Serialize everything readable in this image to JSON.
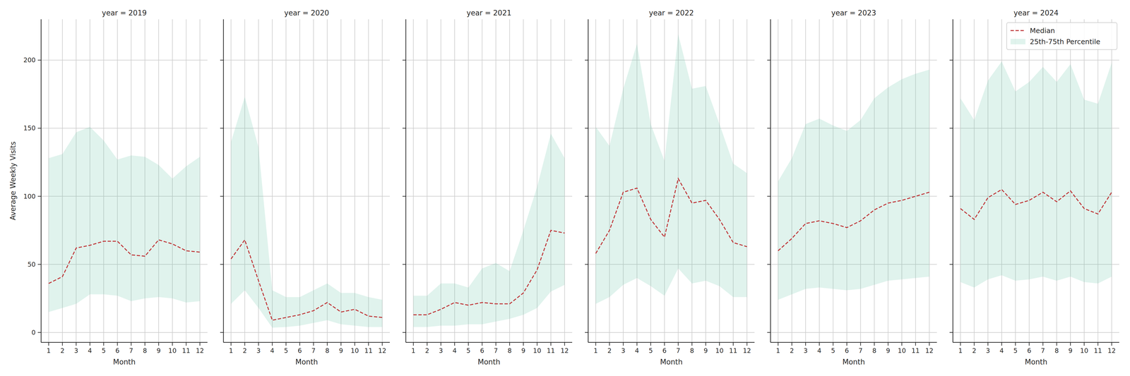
{
  "chart_data": [
    {
      "type": "line",
      "title": "year = 2019",
      "x_label": "Month",
      "y_label": "Average Weekly Visits",
      "x": [
        1,
        2,
        3,
        4,
        5,
        6,
        7,
        8,
        9,
        10,
        11,
        12
      ],
      "xlim": [
        0.45,
        12.55
      ],
      "xticks": [
        1,
        2,
        3,
        4,
        5,
        6,
        7,
        8,
        9,
        10,
        11,
        12
      ],
      "ylim": [
        -7.3,
        230
      ],
      "yticks": [
        0,
        50,
        100,
        150,
        200
      ],
      "grid": true,
      "series": [
        {
          "type": "line",
          "line_style": "dashed",
          "color": "#c0393b",
          "values": [
            36,
            41,
            62,
            64,
            67,
            67,
            57,
            56,
            68,
            65,
            60,
            59
          ]
        },
        {
          "type": "band",
          "color": "#66c2a5",
          "lower": [
            15,
            18,
            21,
            28,
            28,
            27,
            23,
            25,
            26,
            25,
            22,
            23
          ],
          "upper": [
            128,
            131,
            147,
            151,
            141,
            127,
            130,
            129,
            123,
            113,
            122,
            129
          ]
        }
      ]
    },
    {
      "type": "line",
      "title": "year = 2020",
      "x_label": "Month",
      "tick_labels": "x",
      "x": [
        1,
        2,
        3,
        4,
        5,
        6,
        7,
        8,
        9,
        10,
        11,
        12
      ],
      "xlim": [
        0.45,
        12.55
      ],
      "xticks": [
        1,
        2,
        3,
        4,
        5,
        6,
        7,
        8,
        9,
        10,
        11,
        12
      ],
      "ylim": [
        -7.3,
        230
      ],
      "yticks": [
        0,
        50,
        100,
        150,
        200
      ],
      "grid": true,
      "series": [
        {
          "type": "line",
          "line_style": "dashed",
          "color": "#c0393b",
          "values": [
            54,
            68,
            38,
            9,
            11,
            13,
            16,
            22,
            15,
            17,
            12,
            11
          ]
        },
        {
          "type": "band",
          "color": "#66c2a5",
          "lower": [
            21,
            31,
            18,
            3.5,
            4,
            5,
            7,
            9,
            6,
            5,
            4,
            4
          ],
          "upper": [
            140,
            173,
            136,
            31,
            26,
            26,
            31,
            36,
            29,
            29,
            26,
            24
          ]
        }
      ]
    },
    {
      "type": "line",
      "title": "year = 2021",
      "x_label": "Month",
      "tick_labels": "x",
      "x": [
        1,
        2,
        3,
        4,
        5,
        6,
        7,
        8,
        9,
        10,
        11,
        12
      ],
      "xlim": [
        0.45,
        12.55
      ],
      "xticks": [
        1,
        2,
        3,
        4,
        5,
        6,
        7,
        8,
        9,
        10,
        11,
        12
      ],
      "ylim": [
        -7.3,
        230
      ],
      "yticks": [
        0,
        50,
        100,
        150,
        200
      ],
      "grid": true,
      "series": [
        {
          "type": "line",
          "line_style": "dashed",
          "color": "#c0393b",
          "values": [
            13,
            13,
            17,
            22,
            20,
            22,
            21,
            21,
            29,
            46,
            75,
            73
          ]
        },
        {
          "type": "band",
          "color": "#66c2a5",
          "lower": [
            4,
            4,
            5,
            5,
            6,
            6,
            8,
            10,
            13,
            18,
            30,
            35
          ],
          "upper": [
            27,
            27,
            36,
            36,
            33,
            47,
            51,
            45,
            75,
            107,
            146,
            128
          ]
        }
      ]
    },
    {
      "type": "line",
      "title": "year = 2022",
      "x_label": "Month",
      "tick_labels": "x",
      "x": [
        1,
        2,
        3,
        4,
        5,
        6,
        7,
        8,
        9,
        10,
        11,
        12
      ],
      "xlim": [
        0.45,
        12.55
      ],
      "xticks": [
        1,
        2,
        3,
        4,
        5,
        6,
        7,
        8,
        9,
        10,
        11,
        12
      ],
      "ylim": [
        -7.3,
        230
      ],
      "yticks": [
        0,
        50,
        100,
        150,
        200
      ],
      "grid": true,
      "series": [
        {
          "type": "line",
          "line_style": "dashed",
          "color": "#c0393b",
          "values": [
            58,
            75,
            103,
            106,
            83,
            70,
            113,
            95,
            97,
            83,
            66,
            63
          ]
        },
        {
          "type": "band",
          "color": "#66c2a5",
          "lower": [
            21,
            26,
            35,
            40,
            34,
            27,
            47,
            36,
            38,
            34,
            26,
            26
          ],
          "upper": [
            151,
            137,
            179,
            212,
            153,
            126,
            219,
            179,
            181,
            153,
            124,
            117
          ]
        }
      ]
    },
    {
      "type": "line",
      "title": "year = 2023",
      "x_label": "Month",
      "tick_labels": "x",
      "x": [
        1,
        2,
        3,
        4,
        5,
        6,
        7,
        8,
        9,
        10,
        11,
        12
      ],
      "xlim": [
        0.45,
        12.55
      ],
      "xticks": [
        1,
        2,
        3,
        4,
        5,
        6,
        7,
        8,
        9,
        10,
        11,
        12
      ],
      "ylim": [
        -7.3,
        230
      ],
      "yticks": [
        0,
        50,
        100,
        150,
        200
      ],
      "grid": true,
      "series": [
        {
          "type": "line",
          "line_style": "dashed",
          "color": "#c0393b",
          "values": [
            60,
            69,
            80,
            82,
            80,
            77,
            82,
            90,
            95,
            97,
            100,
            103
          ]
        },
        {
          "type": "band",
          "color": "#66c2a5",
          "lower": [
            24,
            28,
            32,
            33,
            32,
            31,
            32,
            35,
            38,
            39,
            40,
            41
          ],
          "upper": [
            111,
            128,
            153,
            157,
            152,
            148,
            156,
            172,
            180,
            186,
            190,
            193
          ]
        }
      ]
    },
    {
      "type": "line",
      "title": "year = 2024",
      "x_label": "Month",
      "tick_labels": "x",
      "legend": "upper right",
      "x": [
        1,
        2,
        3,
        4,
        5,
        6,
        7,
        8,
        9,
        10,
        11,
        12
      ],
      "xlim": [
        0.45,
        12.55
      ],
      "xticks": [
        1,
        2,
        3,
        4,
        5,
        6,
        7,
        8,
        9,
        10,
        11,
        12
      ],
      "ylim": [
        -7.3,
        230
      ],
      "yticks": [
        0,
        50,
        100,
        150,
        200
      ],
      "grid": true,
      "series": [
        {
          "name": "Median",
          "type": "line",
          "line_style": "dashed",
          "color": "#c0393b",
          "values": [
            91,
            83,
            99,
            105,
            94,
            97,
            103,
            96,
            104,
            91,
            87,
            103
          ]
        },
        {
          "name": "25th-75th Percentile",
          "type": "band",
          "color": "#66c2a5",
          "lower": [
            37,
            33,
            39,
            42,
            38,
            39,
            41,
            38,
            41,
            37,
            36,
            41
          ],
          "upper": [
            172,
            156,
            185,
            199,
            177,
            184,
            195,
            184,
            197,
            171,
            168,
            198
          ]
        }
      ]
    }
  ]
}
